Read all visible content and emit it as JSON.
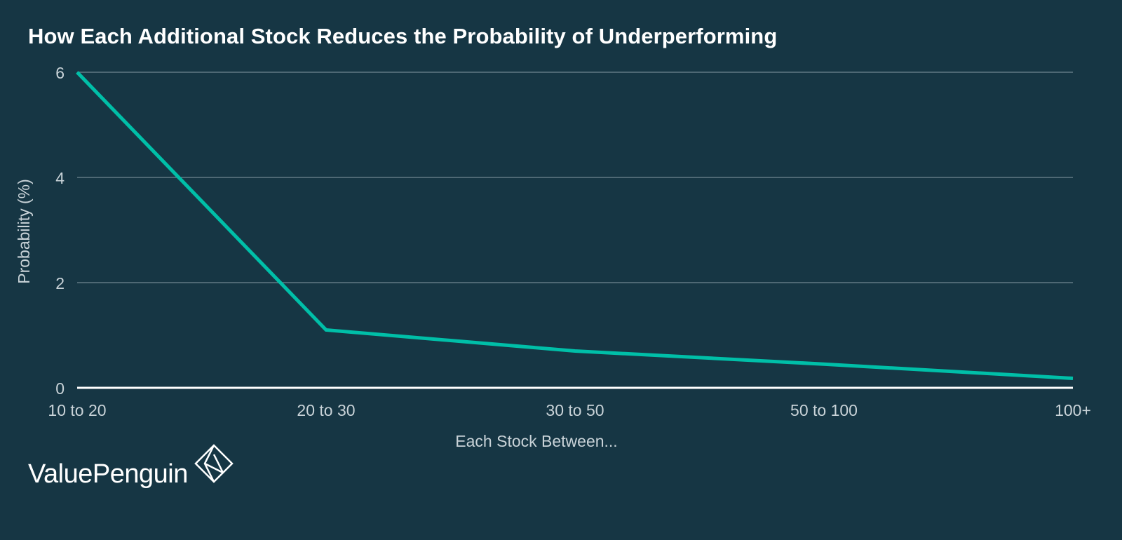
{
  "colors": {
    "background": "#163644",
    "line": "#00bfa8",
    "grid": "#6f8791",
    "baseline": "#ffffff",
    "text": "#c9d3d8",
    "title": "#ffffff"
  },
  "chart_data": {
    "type": "line",
    "title": "How Each Additional Stock Reduces the Probability of Underperforming",
    "xlabel": "Each Stock Between...",
    "ylabel": "Probability (%)",
    "categories": [
      "10 to 20",
      "20 to 30",
      "30 to 50",
      "50 to 100",
      "100+"
    ],
    "series": [
      {
        "values": [
          6.0,
          1.1,
          0.7,
          0.45,
          0.18
        ]
      }
    ],
    "ylim": [
      0,
      6
    ],
    "yticks": [
      "0",
      "2",
      "4",
      "6"
    ],
    "grid": true,
    "legend": "none"
  },
  "branding": {
    "logo_text": "ValuePenguin",
    "logo_mark_icon": "diamond-logo-icon"
  }
}
